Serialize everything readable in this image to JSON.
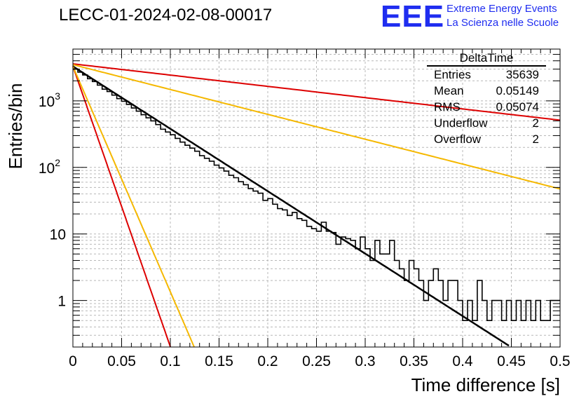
{
  "header": {
    "title": "LECC-01-2024-02-08-00017",
    "logo_text": "EEE",
    "logo_line1": "Extreme Energy Events",
    "logo_line2": "La Scienza nelle Scuole",
    "logo_color": "#1f2df0"
  },
  "stats_box": {
    "title": "DeltaTime",
    "rows": [
      {
        "label": "Entries",
        "value": "35639"
      },
      {
        "label": "Mean",
        "value": "0.05149"
      },
      {
        "label": "RMS",
        "value": "0.05074"
      },
      {
        "label": "Underflow",
        "value": "2"
      },
      {
        "label": "Overflow",
        "value": "2"
      }
    ]
  },
  "chart_data": {
    "type": "line",
    "title": "LECC-01-2024-02-08-00017",
    "xlabel": "Time difference [s]",
    "ylabel": "Entries/bin",
    "xlim": [
      0,
      0.5
    ],
    "ylim": [
      0.2,
      6000
    ],
    "y_scale": "log",
    "grid": true,
    "x_ticks": [
      "0",
      "0.05",
      "0.1",
      "0.15",
      "0.2",
      "0.25",
      "0.3",
      "0.35",
      "0.4",
      "0.45",
      "0.5"
    ],
    "y_ticks": [
      "1",
      "10",
      "10^2",
      "10^3"
    ],
    "histogram": {
      "name": "DeltaTime",
      "bin_width": 0.005,
      "color": "#000000",
      "values": [
        3000,
        2700,
        2450,
        2150,
        1950,
        1720,
        1500,
        1380,
        1220,
        1080,
        985,
        885,
        780,
        700,
        620,
        556,
        500,
        440,
        375,
        340,
        310,
        273,
        240,
        215,
        195,
        175,
        150,
        137,
        124,
        108,
        98,
        88,
        76,
        70,
        61,
        55,
        48,
        44,
        41,
        32,
        34,
        28,
        24,
        23,
        19,
        21,
        17,
        16,
        13,
        12,
        11,
        15,
        11,
        10.5,
        7,
        9,
        8.5,
        8,
        6,
        9,
        6,
        4,
        8,
        5,
        5,
        8,
        4,
        3,
        2,
        4,
        3,
        2,
        1,
        2,
        3,
        2,
        1,
        2,
        2,
        1,
        0.5,
        1,
        0.5,
        2,
        1,
        0.5,
        1,
        1,
        0.5,
        1,
        0.5,
        1,
        0.5,
        1,
        0.5,
        1,
        0.5,
        0.5,
        1,
        1
      ]
    },
    "series": [
      {
        "name": "",
        "type": "exponential_fit",
        "amplitude": 3300,
        "slope": -21.6,
        "x_range": [
          0,
          0.5
        ],
        "color": "#000000"
      },
      {
        "type": "exponential_bound",
        "amplitude": 3600,
        "slope": -3.9,
        "x_range": [
          0,
          0.5
        ],
        "color": "#dd0000"
      },
      {
        "type": "exponential_bound",
        "amplitude": 3500,
        "slope": -8.6,
        "x_range": [
          0,
          0.5
        ],
        "color": "#f5b800"
      },
      {
        "type": "exponential_bound",
        "amplitude": 3300,
        "slope": -97,
        "x_range": [
          0,
          0.1
        ],
        "color": "#dd0000"
      },
      {
        "type": "exponential_bound",
        "amplitude": 3300,
        "slope": -78,
        "x_range": [
          0,
          0.125
        ],
        "color": "#f5b800"
      }
    ]
  }
}
